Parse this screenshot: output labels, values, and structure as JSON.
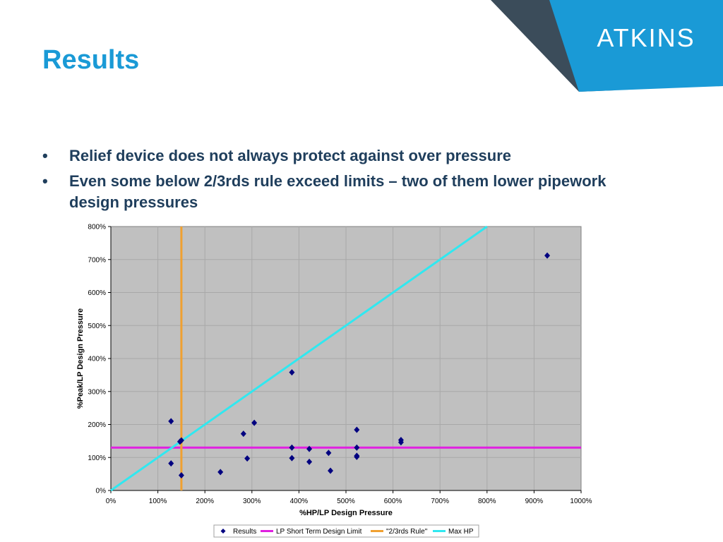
{
  "slide": {
    "title": "Results",
    "logo_text": "ATKINS",
    "bullet_char": "•",
    "bullets": [
      "Relief device does not always protect against over pressure",
      "Even some below 2/3rds rule exceed limits – two of them lower pipework design pressures"
    ]
  },
  "colors": {
    "title": "#1a9ad6",
    "bullet_text": "#1f3e5c",
    "corner_dark": "#3b4c5a",
    "corner_blue": "#1a9ad6",
    "plot_bg": "#c0c0c0",
    "marker": "#000080",
    "lp_limit": "#e020e0",
    "two_thirds_rule": "#f0a030",
    "max_hp": "#30e8f0"
  },
  "chart_data": {
    "type": "scatter",
    "xlabel": "%HP/LP Design Pressure",
    "ylabel": "%Peak/LP Design Pressure",
    "xlim": [
      0,
      1000
    ],
    "ylim": [
      0,
      800
    ],
    "grid": true,
    "legend_position": "bottom",
    "x_ticks": [
      "0%",
      "100%",
      "200%",
      "300%",
      "400%",
      "500%",
      "600%",
      "700%",
      "800%",
      "900%",
      "1000%"
    ],
    "y_ticks": [
      "0%",
      "100%",
      "200%",
      "300%",
      "400%",
      "500%",
      "600%",
      "700%",
      "800%"
    ],
    "series": [
      {
        "name": "Results",
        "kind": "markers",
        "points": [
          [
            128,
            210
          ],
          [
            128,
            82
          ],
          [
            147,
            148
          ],
          [
            150,
            152
          ],
          [
            150,
            46
          ],
          [
            233,
            56
          ],
          [
            282,
            172
          ],
          [
            290,
            97
          ],
          [
            305,
            205
          ],
          [
            385,
            358
          ],
          [
            385,
            130
          ],
          [
            385,
            98
          ],
          [
            422,
            126
          ],
          [
            422,
            87
          ],
          [
            463,
            114
          ],
          [
            467,
            60
          ],
          [
            523,
            184
          ],
          [
            523,
            130
          ],
          [
            523,
            105
          ],
          [
            523,
            102
          ],
          [
            617,
            153
          ],
          [
            617,
            146
          ],
          [
            928,
            712
          ]
        ]
      },
      {
        "name": "LP Short Term Design Limit",
        "kind": "line",
        "points": [
          [
            0,
            130
          ],
          [
            1000,
            130
          ]
        ]
      },
      {
        "name": "\"2/3rds Rule\"",
        "kind": "line",
        "points": [
          [
            150,
            0
          ],
          [
            150,
            800
          ]
        ]
      },
      {
        "name": "Max HP",
        "kind": "line",
        "points": [
          [
            0,
            0
          ],
          [
            800,
            800
          ]
        ]
      }
    ]
  }
}
